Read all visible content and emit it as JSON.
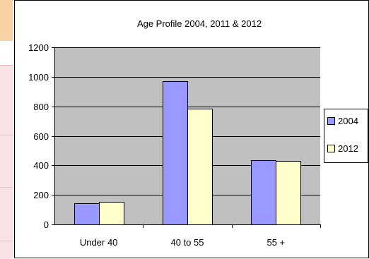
{
  "chart_data": {
    "type": "bar",
    "title": "Age Profile 2004, 2011 & 2012",
    "categories": [
      "Under 40",
      "40 to 55",
      "55 +"
    ],
    "series": [
      {
        "name": "2004",
        "values": [
          143,
          970,
          435
        ],
        "color": "#9999ff"
      },
      {
        "name": "2012",
        "values": [
          155,
          785,
          430
        ],
        "color": "#ffffcc"
      }
    ],
    "yticks": [
      0,
      200,
      400,
      600,
      800,
      1000,
      1200
    ],
    "ylim": [
      0,
      1200
    ],
    "grid": true,
    "legend_position": "right",
    "plot_background": "#c0c0c0"
  }
}
